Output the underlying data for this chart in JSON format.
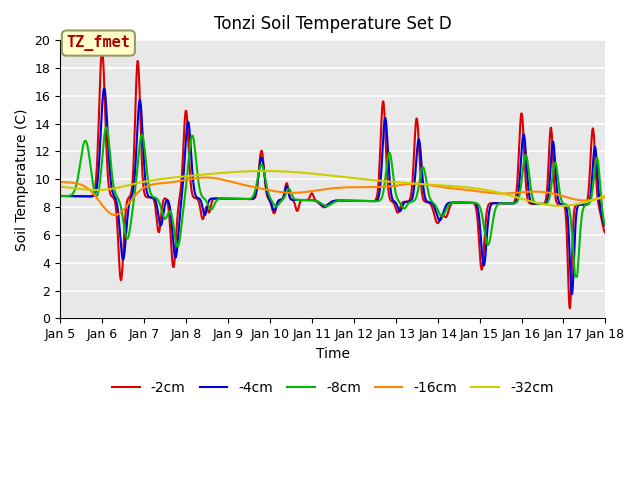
{
  "title": "Tonzi Soil Temperature Set D",
  "xlabel": "Time",
  "ylabel": "Soil Temperature (C)",
  "ylim": [
    0,
    20
  ],
  "xlim": [
    0,
    13
  ],
  "xtick_labels": [
    "Jan 5",
    "Jan 6",
    "Jan 7",
    "Jan 8",
    "Jan 9",
    "Jan 10",
    "Jan 11",
    "Jan 12",
    "Jan 13",
    "Jan 14",
    "Jan 15",
    "Jan 16",
    "Jan 17",
    "Jan 18"
  ],
  "xtick_positions": [
    0,
    1,
    2,
    3,
    4,
    5,
    6,
    7,
    8,
    9,
    10,
    11,
    12,
    13
  ],
  "legend_labels": [
    "-2cm",
    "-4cm",
    "-8cm",
    "-16cm",
    "-32cm"
  ],
  "line_colors": [
    "#dd0000",
    "#0000dd",
    "#00bb00",
    "#ff8800",
    "#cccc00"
  ],
  "annotation_text": "TZ_fmet",
  "bg_color": "#e8e8e8",
  "title_fontsize": 12,
  "axis_fontsize": 10,
  "legend_fontsize": 10
}
